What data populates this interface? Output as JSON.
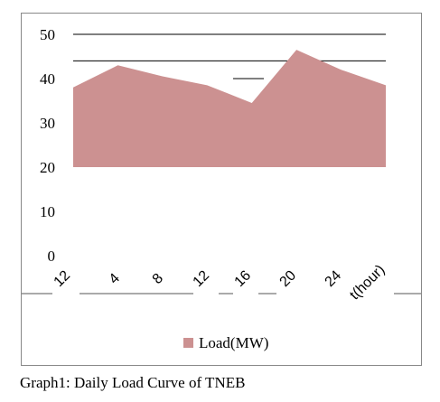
{
  "chart_data": {
    "type": "area",
    "categories": [
      "12",
      "4",
      "8",
      "12",
      "16",
      "20",
      "24",
      "t(hour)"
    ],
    "series": [
      {
        "name": "Load(MW)",
        "values": [
          38,
          43,
          40.5,
          38.5,
          34.5,
          46.5,
          42,
          38.5
        ]
      }
    ],
    "baseline": 20,
    "ylim": [
      0,
      50
    ],
    "yticks": [
      "0",
      "10",
      "20",
      "30",
      "40",
      "50"
    ],
    "gridlines": [
      44,
      50
    ],
    "grid": true,
    "legend": "bottom",
    "colors": {
      "area": "#cc9191",
      "gridline": "#000000"
    }
  },
  "caption": "Graph1: Daily Load Curve of TNEB"
}
